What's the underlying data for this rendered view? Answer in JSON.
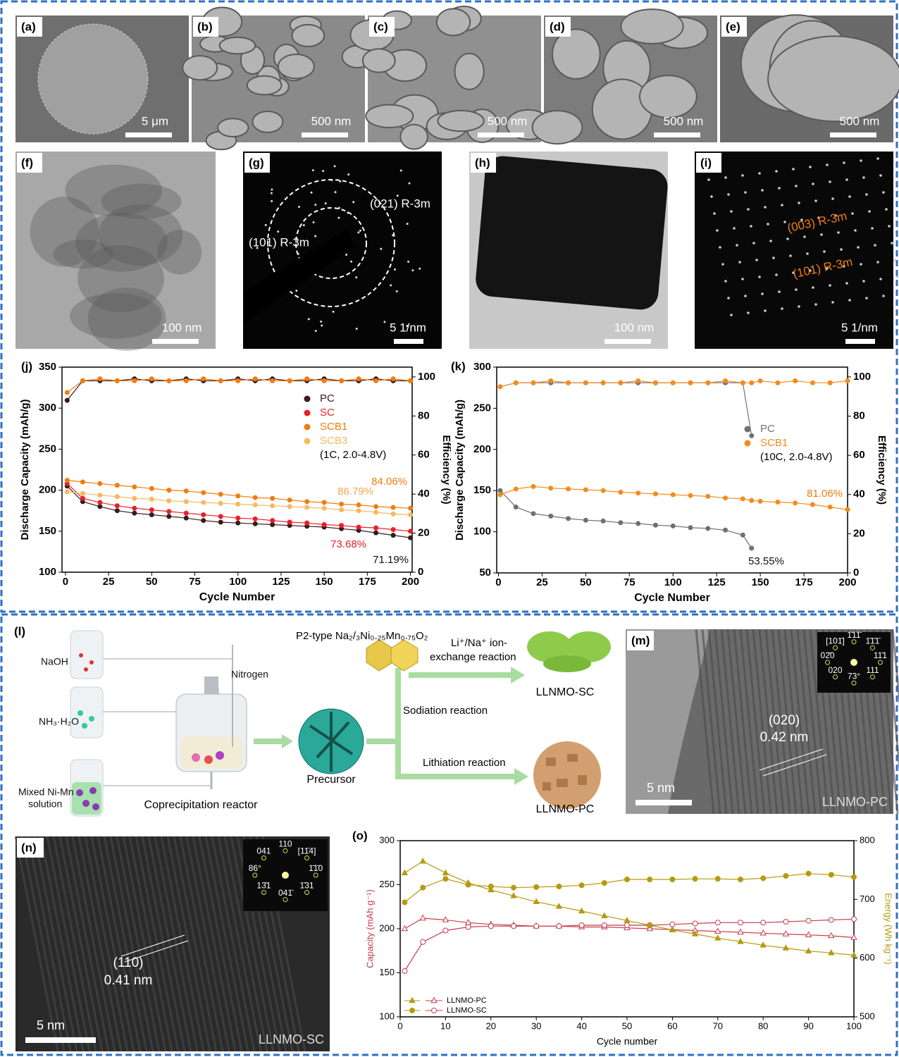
{
  "panels": [
    {
      "label": "(a)",
      "scale": "5 μm"
    },
    {
      "label": "(b)",
      "scale": "500 nm"
    },
    {
      "label": "(c)",
      "scale": "500 nm"
    },
    {
      "label": "(d)",
      "scale": "500 nm"
    },
    {
      "label": "(e)",
      "scale": "500 nm"
    },
    {
      "label": "(f)",
      "scale": "100 nm"
    },
    {
      "label": "(g)",
      "scale": "5 1/nm",
      "notes": [
        "(021) R-3m",
        "(101) R-3m"
      ]
    },
    {
      "label": "(h)",
      "scale": "100 nm"
    },
    {
      "label": "(i)",
      "scale": "5 1/nm",
      "notes": [
        "(003) R-3m",
        "(101) R-3m"
      ]
    }
  ],
  "diagram": {
    "label": "(l)",
    "reagents": [
      [
        "NaOH"
      ],
      [
        "NH₃·H₂O"
      ],
      [
        "Mixed Ni-Mn",
        "solution"
      ]
    ],
    "gas": "Nitrogen",
    "reactor": "Coprecipitation reactor",
    "precursor": "Precursor",
    "p2": "P2-type Na₂/₃Ni₀.₂₅Mn₀.₇₅O₂",
    "steps": [
      [
        "Li⁺/Na⁺ ion-",
        "exchange reaction"
      ],
      [
        "Sodiation reaction"
      ],
      [
        "Lithiation reaction"
      ]
    ],
    "products": [
      "LLNMO-SC",
      "LLNMO-PC"
    ]
  },
  "hrtem": [
    {
      "label": "(m)",
      "plane": "(020)",
      "spacing": "0.42 nm",
      "scale": "5 nm",
      "sample": "LLNMO-PC",
      "fft": [
        "11̄1",
        "111",
        "73°",
        "020",
        "02̄0",
        "[101̄]",
        "1̄11̄",
        "1̄1̄1̄"
      ]
    },
    {
      "label": "(n)",
      "plane": "(110)",
      "spacing": "0.41 nm",
      "scale": "5 nm",
      "sample": "LLNMO-SC",
      "fft": [
        "1̄1̄0",
        "1̄31",
        "041̄",
        "13̄1",
        "86°",
        "041",
        "110",
        "[11̄4]"
      ]
    }
  ],
  "chart_data": [
    {
      "type": "line",
      "title": "(j)",
      "xlabel": "Cycle Number",
      "ylabel": "Discharge Capacity (mAh/g)",
      "y2label": "Efficiency (%)",
      "x": [
        1,
        10,
        20,
        30,
        40,
        50,
        60,
        70,
        80,
        90,
        100,
        110,
        120,
        130,
        140,
        150,
        160,
        170,
        180,
        190,
        200
      ],
      "xlim": [
        -2,
        201
      ],
      "xticks": [
        0,
        25,
        50,
        75,
        100,
        125,
        150,
        175,
        200
      ],
      "ylim": [
        100,
        350
      ],
      "yticks": [
        100,
        150,
        200,
        250,
        300,
        350
      ],
      "y2lim": [
        0,
        105
      ],
      "y2ticks": [
        0,
        20,
        40,
        60,
        80,
        100
      ],
      "series": [
        {
          "name": "PC",
          "color": "#3a1a1a",
          "marker": "circle",
          "values": [
            205,
            186,
            180,
            175,
            172,
            170,
            168,
            166,
            163,
            161,
            160,
            159,
            158,
            157,
            156,
            155,
            153,
            151,
            148,
            145,
            142
          ]
        },
        {
          "name": "SC",
          "color": "#e8202a",
          "marker": "circle",
          "values": [
            208,
            190,
            185,
            181,
            178,
            176,
            174,
            172,
            170,
            168,
            166,
            165,
            163,
            161,
            160,
            158,
            157,
            155,
            154,
            152,
            150
          ]
        },
        {
          "name": "SCB1",
          "color": "#f07d10",
          "marker": "circle",
          "values": [
            212,
            210,
            208,
            206,
            204,
            202,
            200,
            199,
            197,
            195,
            193,
            191,
            190,
            188,
            186,
            185,
            183,
            182,
            180,
            179,
            178
          ]
        },
        {
          "name": "SCB3",
          "color": "#f8b860",
          "marker": "circle",
          "values": [
            198,
            196,
            194,
            192,
            190,
            189,
            187,
            186,
            185,
            184,
            183,
            182,
            181,
            180,
            179,
            178,
            176,
            175,
            173,
            171,
            170
          ]
        },
        {
          "color": "#3a1a1a",
          "marker": "circle",
          "axis": "y2",
          "values": [
            88,
            98,
            98,
            98,
            99,
            98,
            98,
            99,
            98,
            98,
            99,
            98,
            99,
            98,
            98,
            99,
            98,
            98,
            99,
            98,
            98
          ]
        },
        {
          "color": "#f07d10",
          "marker": "circle",
          "axis": "y2",
          "values": [
            92,
            98,
            99,
            98,
            98,
            99,
            98,
            98,
            99,
            98,
            98,
            99,
            98,
            98,
            99,
            98,
            98,
            99,
            98,
            99,
            98
          ]
        }
      ],
      "legend_note": "(1C, 2.0-4.8V)",
      "annotations": [
        {
          "text": "84.06%",
          "color": "#f07d10"
        },
        {
          "text": "86.79%",
          "color": "#f5a850"
        },
        {
          "text": "73.68%",
          "color": "#e8202a"
        },
        {
          "text": "71.19%",
          "color": "#111111"
        }
      ]
    },
    {
      "type": "line",
      "title": "(k)",
      "xlabel": "Cycle Number",
      "ylabel": "Discharge Capacity (mAh/g)",
      "y2label": "Efficiency (%)",
      "x": [
        1,
        10,
        20,
        30,
        40,
        50,
        60,
        70,
        80,
        90,
        100,
        110,
        120,
        130,
        140,
        145,
        150,
        160,
        170,
        180,
        190,
        200
      ],
      "xlim": [
        -1,
        200
      ],
      "xticks": [
        0,
        25,
        50,
        75,
        100,
        125,
        150,
        175,
        200
      ],
      "ylim": [
        50,
        300
      ],
      "yticks": [
        50,
        100,
        150,
        200,
        250,
        300
      ],
      "y2lim": [
        0,
        105
      ],
      "y2ticks": [
        0,
        20,
        40,
        60,
        80,
        100
      ],
      "series": [
        {
          "name": "PC",
          "color": "#707070",
          "marker": "circle",
          "values": [
            150,
            130,
            122,
            119,
            116,
            114,
            113,
            111,
            110,
            108,
            107,
            105,
            104,
            102,
            96,
            80,
            null,
            null,
            null,
            null,
            null,
            null
          ]
        },
        {
          "name": "SCB1",
          "color": "#f58a1f",
          "marker": "circle",
          "values": [
            145,
            152,
            155,
            153,
            152,
            151,
            150,
            148,
            147,
            146,
            145,
            144,
            143,
            141,
            140,
            138,
            137,
            136,
            135,
            133,
            130,
            127
          ]
        },
        {
          "color": "#707070",
          "marker": "circle",
          "axis": "y2",
          "values": [
            95,
            97,
            97,
            97,
            97,
            97,
            97,
            97,
            97,
            97,
            97,
            97,
            97,
            97,
            97,
            70,
            null,
            null,
            null,
            null,
            null,
            null
          ]
        },
        {
          "color": "#f58a1f",
          "marker": "circle",
          "axis": "y2",
          "values": [
            95,
            97,
            97,
            98,
            97,
            97,
            97,
            97,
            98,
            97,
            97,
            97,
            97,
            98,
            97,
            97,
            98,
            97,
            98,
            97,
            97,
            98
          ]
        }
      ],
      "legend_note": "(10C, 2.0-4.8V)",
      "annotations": [
        {
          "text": "81.06%",
          "color": "#f07d10"
        },
        {
          "text": "53.55%",
          "color": "#111111"
        }
      ]
    },
    {
      "type": "line",
      "title": "(o)",
      "xlabel": "Cycle number",
      "ylabel": "Capacity (mAh g⁻¹)",
      "y2label": "Energy (Wh kg⁻¹)",
      "ylabel_color": "#c83c4b",
      "y2label_color": "#b59a10",
      "x": [
        1,
        5,
        10,
        15,
        20,
        25,
        30,
        35,
        40,
        45,
        50,
        55,
        60,
        65,
        70,
        75,
        80,
        85,
        90,
        95,
        100
      ],
      "xlim": [
        0,
        100
      ],
      "xticks": [
        0,
        10,
        20,
        30,
        40,
        50,
        60,
        70,
        80,
        90,
        100
      ],
      "ylim": [
        100,
        300
      ],
      "yticks": [
        100,
        150,
        200,
        250,
        300
      ],
      "y2lim": [
        500,
        800
      ],
      "y2ticks": [
        500,
        600,
        700,
        800
      ],
      "series": [
        {
          "name": "LLNMO-PC",
          "color": "#c83c4b",
          "marker": "triangle-open",
          "values": [
            200,
            212,
            210,
            207,
            205,
            204,
            203,
            203,
            202,
            202,
            201,
            200,
            199,
            198,
            197,
            196,
            195,
            194,
            193,
            192,
            190
          ]
        },
        {
          "name": "LLNMO-SC",
          "color": "#c83c4b",
          "marker": "circle-open",
          "values": [
            152,
            185,
            198,
            202,
            203,
            203,
            203,
            203,
            204,
            204,
            204,
            204,
            205,
            206,
            207,
            207,
            207,
            208,
            209,
            210,
            211
          ]
        },
        {
          "color": "#b59a10",
          "marker": "triangle",
          "axis": "y2",
          "values": [
            745,
            765,
            745,
            728,
            716,
            706,
            696,
            688,
            680,
            672,
            664,
            656,
            648,
            641,
            634,
            628,
            622,
            617,
            612,
            609,
            605
          ]
        },
        {
          "color": "#b59a10",
          "marker": "circle",
          "axis": "y2",
          "values": [
            695,
            720,
            735,
            725,
            722,
            720,
            721,
            722,
            724,
            728,
            734,
            734,
            734,
            735,
            735,
            734,
            736,
            740,
            744,
            742,
            738
          ]
        }
      ]
    }
  ]
}
